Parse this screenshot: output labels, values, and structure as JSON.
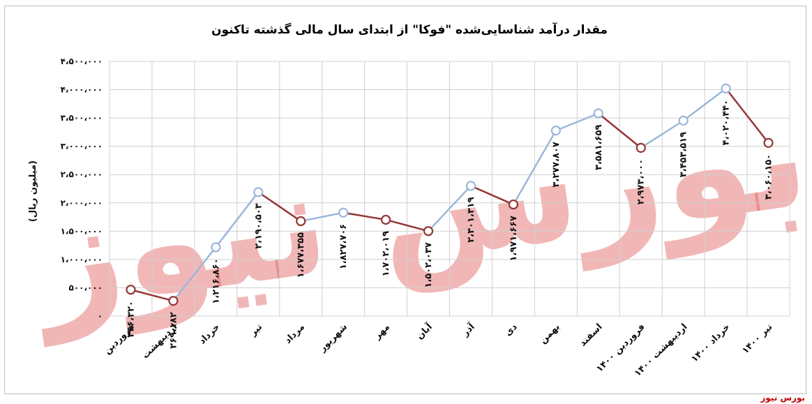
{
  "source_label": "بورس نیوز",
  "chart_data": {
    "type": "line",
    "title": "مقدار درآمد شناسایی‌شده \"فوکا\" از ابتدای سال مالی گذشته تاکنون",
    "ylabel": "(میلیون ریال)",
    "xlabel": "",
    "ylim": [
      0,
      4500000
    ],
    "yticks": [
      0,
      500000,
      1000000,
      1500000,
      2000000,
      2500000,
      3000000,
      3500000,
      4000000,
      4500000
    ],
    "ytick_labels": [
      "۰",
      "۵۰۰،۰۰۰",
      "۱،۰۰۰،۰۰۰",
      "۱،۵۰۰،۰۰۰",
      "۲،۰۰۰،۰۰۰",
      "۲،۵۰۰،۰۰۰",
      "۳،۰۰۰،۰۰۰",
      "۳،۵۰۰،۰۰۰",
      "۴،۰۰۰،۰۰۰",
      "۴،۵۰۰،۰۰۰"
    ],
    "grid": true,
    "categories": [
      "فروردین",
      "اردیبهشت",
      "خرداد",
      "تیر",
      "مرداد",
      "شهریور",
      "مهر",
      "آبان",
      "آذر",
      "دی",
      "بهمن",
      "اسفند",
      "فروردین ۱۴۰۰",
      "اردیبهشت ۱۴۰۰",
      "خرداد ۱۴۰۰",
      "تیر ۱۴۰۰"
    ],
    "values": [
      466320,
      269182,
      1216860,
      2190503,
      1677355,
      1827706,
      1702019,
      1502037,
      2301319,
      1971667,
      3277807,
      3581659,
      2973000,
      3453519,
      4020440,
      3060150
    ],
    "value_labels": [
      "۴۶۶،۳۲۰",
      "۲۶۹،۱۸۲",
      "۱،۲۱۶،۸۶۰",
      "۲،۱۹۰،۵۰۳",
      "۱،۶۷۷،۳۵۵",
      "۱،۸۲۷،۷۰۶",
      "۱،۷۰۲،۰۱۹",
      "۱،۵۰۲،۰۳۷",
      "۲،۳۰۱،۳۱۹",
      "۱،۹۷۱،۶۶۷",
      "۳،۲۷۷،۸۰۷",
      "۳،۵۸۱،۶۵۹",
      "۲،۹۷۳،۰۰۰",
      "۳،۴۵۳،۵۱۹",
      "۴،۰۲۰،۴۴۰",
      "۳،۰۶۰،۱۵۰"
    ],
    "colors": {
      "up": "#9bb7d9",
      "down": "#943634",
      "marker_fill": "#ffffff",
      "grid": "#d0d0d0"
    },
    "watermark": "بورس نیوز"
  }
}
